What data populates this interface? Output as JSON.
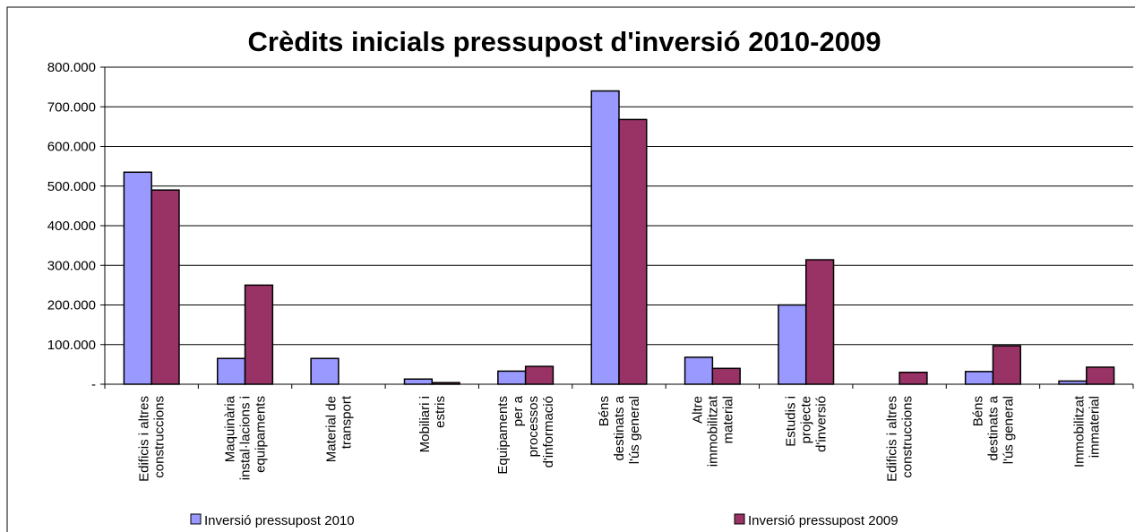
{
  "chart_data": {
    "type": "bar",
    "title": "Crèdits inicials pressupost d'inversió 2010-2009",
    "categories": [
      [
        "Edificis i altres",
        "construccions"
      ],
      [
        "Maquinària",
        "instal·lacions i",
        "equipaments"
      ],
      [
        "Material de",
        "transport"
      ],
      [
        "Mobiliari i",
        "estris"
      ],
      [
        "Equipaments",
        "per a",
        "processos",
        "d'informació"
      ],
      [
        "Béns",
        "destinats a",
        "l'ús general"
      ],
      [
        "Altre",
        "immobilitzat",
        "material"
      ],
      [
        "Estudis i",
        "projecte",
        "d'inversió"
      ],
      [
        "Edificis i altres",
        "construccions"
      ],
      [
        "Béns",
        "destinats a",
        "l'ús general"
      ],
      [
        "Immobilitzat",
        "immaterial"
      ]
    ],
    "series": [
      {
        "name": "Inversió pressupost 2010",
        "color": "#9999ff",
        "values": [
          535000,
          65000,
          65000,
          13000,
          33000,
          740000,
          68000,
          200000,
          0,
          32000,
          8000
        ]
      },
      {
        "name": "Inversió pressupost 2009",
        "color": "#993366",
        "values": [
          490000,
          250000,
          0,
          4000,
          45000,
          668000,
          40000,
          314000,
          30000,
          97000,
          43000
        ]
      }
    ],
    "ylim": [
      0,
      800000
    ],
    "yticks": [
      {
        "value": 0,
        "label": "-"
      },
      {
        "value": 100000,
        "label": "100.000"
      },
      {
        "value": 200000,
        "label": "200.000"
      },
      {
        "value": 300000,
        "label": "300.000"
      },
      {
        "value": 400000,
        "label": "400.000"
      },
      {
        "value": 500000,
        "label": "500.000"
      },
      {
        "value": 600000,
        "label": "600.000"
      },
      {
        "value": 700000,
        "label": "700.000"
      },
      {
        "value": 800000,
        "label": "800.000"
      }
    ],
    "grid": true,
    "legend": "bottom"
  }
}
